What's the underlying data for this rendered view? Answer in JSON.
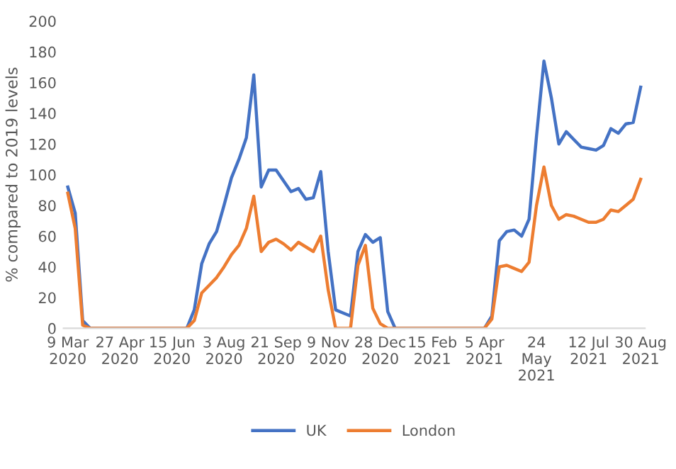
{
  "chart_data": {
    "type": "line",
    "ylabel": "% compared to 2019 levels",
    "x": [
      "2020-03-09",
      "2020-03-16",
      "2020-03-23",
      "2020-03-30",
      "2020-04-06",
      "2020-04-13",
      "2020-04-20",
      "2020-04-27",
      "2020-05-04",
      "2020-05-11",
      "2020-05-18",
      "2020-05-25",
      "2020-06-01",
      "2020-06-08",
      "2020-06-15",
      "2020-06-22",
      "2020-06-29",
      "2020-07-06",
      "2020-07-13",
      "2020-07-20",
      "2020-07-27",
      "2020-08-03",
      "2020-08-10",
      "2020-08-17",
      "2020-08-24",
      "2020-08-31",
      "2020-09-07",
      "2020-09-14",
      "2020-09-21",
      "2020-09-28",
      "2020-10-05",
      "2020-10-12",
      "2020-10-19",
      "2020-10-26",
      "2020-11-02",
      "2020-11-09",
      "2020-11-16",
      "2020-11-23",
      "2020-11-30",
      "2020-12-07",
      "2020-12-14",
      "2020-12-21",
      "2020-12-28",
      "2021-01-04",
      "2021-01-11",
      "2021-01-18",
      "2021-01-25",
      "2021-02-01",
      "2021-02-08",
      "2021-02-15",
      "2021-02-22",
      "2021-03-01",
      "2021-03-08",
      "2021-03-15",
      "2021-03-22",
      "2021-03-29",
      "2021-04-05",
      "2021-04-12",
      "2021-04-19",
      "2021-04-26",
      "2021-05-03",
      "2021-05-10",
      "2021-05-17",
      "2021-05-24",
      "2021-05-31",
      "2021-06-07",
      "2021-06-14",
      "2021-06-21",
      "2021-06-28",
      "2021-07-05",
      "2021-07-12",
      "2021-07-19",
      "2021-07-26",
      "2021-08-02",
      "2021-08-09",
      "2021-08-16",
      "2021-08-23",
      "2021-08-30"
    ],
    "series": [
      {
        "name": "UK",
        "color": "#4472c4",
        "values": [
          92,
          75,
          5,
          0,
          0,
          0,
          0,
          0,
          0,
          0,
          0,
          0,
          0,
          0,
          0,
          0,
          0,
          12,
          42,
          55,
          63,
          80,
          98,
          110,
          124,
          165,
          92,
          103,
          103,
          96,
          89,
          91,
          84,
          85,
          102,
          50,
          12,
          10,
          8,
          50,
          61,
          56,
          59,
          11,
          0,
          0,
          0,
          0,
          0,
          0,
          0,
          0,
          0,
          0,
          0,
          0,
          0,
          8,
          57,
          63,
          64,
          60,
          71,
          125,
          174,
          150,
          120,
          128,
          123,
          118,
          117,
          116,
          119,
          130,
          127,
          133,
          134,
          157
        ]
      },
      {
        "name": "London",
        "color": "#ed7d31",
        "values": [
          88,
          65,
          2,
          0,
          0,
          0,
          0,
          0,
          0,
          0,
          0,
          0,
          0,
          0,
          0,
          0,
          0,
          5,
          23,
          28,
          33,
          40,
          48,
          54,
          65,
          86,
          50,
          56,
          58,
          55,
          51,
          56,
          53,
          50,
          60,
          25,
          0,
          0,
          0,
          41,
          54,
          13,
          3,
          0,
          0,
          0,
          0,
          0,
          0,
          0,
          0,
          0,
          0,
          0,
          0,
          0,
          0,
          6,
          40,
          41,
          39,
          37,
          43,
          80,
          105,
          80,
          71,
          74,
          73,
          71,
          69,
          69,
          71,
          77,
          76,
          80,
          84,
          97
        ]
      }
    ],
    "xlim": [
      "2020-03-05",
      "2021-09-03"
    ],
    "xticks": [
      {
        "value": "2020-03-09",
        "label": "9 Mar\n2020"
      },
      {
        "value": "2020-04-27",
        "label": "27 Apr\n2020"
      },
      {
        "value": "2020-06-15",
        "label": "15 Jun\n2020"
      },
      {
        "value": "2020-08-03",
        "label": "3 Aug\n2020"
      },
      {
        "value": "2020-09-21",
        "label": "21 Sep\n2020"
      },
      {
        "value": "2020-11-09",
        "label": "9 Nov\n2020"
      },
      {
        "value": "2020-12-28",
        "label": "28 Dec\n2020"
      },
      {
        "value": "2021-02-15",
        "label": "15 Feb\n2021"
      },
      {
        "value": "2021-04-05",
        "label": "5 Apr\n2021"
      },
      {
        "value": "2021-05-24",
        "label": "24\nMay\n2021"
      },
      {
        "value": "2021-07-12",
        "label": "12 Jul\n2021"
      },
      {
        "value": "2021-08-30",
        "label": "30 Aug\n2021"
      }
    ],
    "ylim": [
      0,
      200
    ],
    "yticks": [
      0,
      20,
      40,
      60,
      80,
      100,
      120,
      140,
      160,
      180,
      200
    ],
    "grid": false,
    "legend": "bottom",
    "marker": "none",
    "line_style": "solid"
  }
}
